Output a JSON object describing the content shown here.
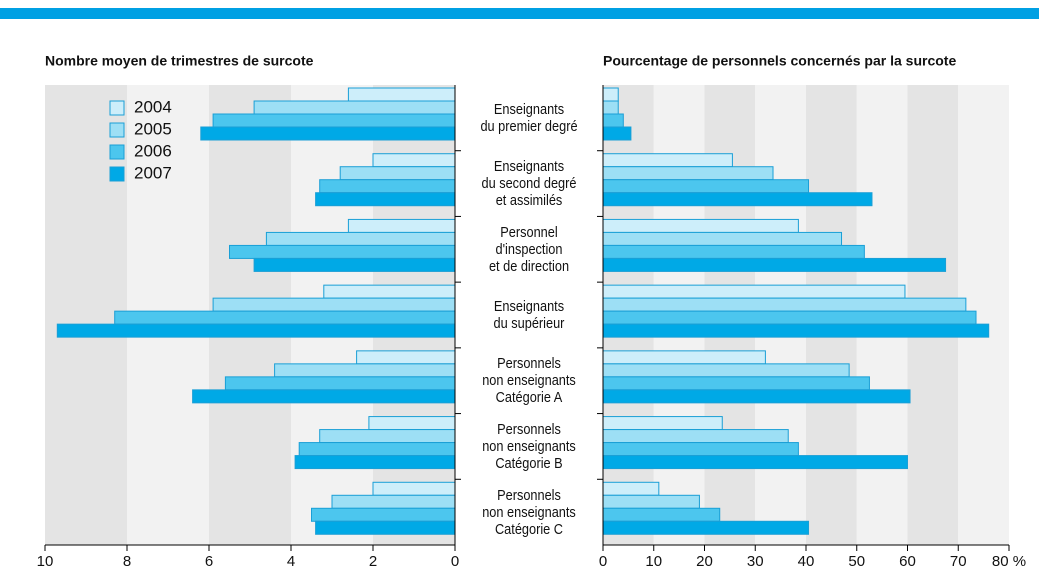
{
  "chart_data": [
    {
      "type": "bar",
      "orientation": "horizontal",
      "title": "Nombre moyen de trimestres de surcote",
      "categories": [
        "Enseignants\ndu premier degré",
        "Enseignants\ndu second degré\net assimilés",
        "Personnel\nd'inspection\net de direction",
        "Enseignants\ndu supérieur",
        "Personnels\nnon enseignants\nCatégorie A",
        "Personnels\nnon enseignants\nCatégorie B",
        "Personnels\nnon enseignants\nCatégorie C"
      ],
      "series": [
        {
          "name": "2004",
          "color": "#cdeefa",
          "values": [
            2.6,
            2.0,
            2.6,
            3.2,
            2.4,
            2.1,
            2.0
          ]
        },
        {
          "name": "2005",
          "color": "#9ddff5",
          "values": [
            4.9,
            2.8,
            4.6,
            5.9,
            4.4,
            3.3,
            3.0
          ]
        },
        {
          "name": "2006",
          "color": "#4cc6ee",
          "values": [
            5.9,
            3.3,
            5.5,
            8.3,
            5.6,
            3.8,
            3.5
          ]
        },
        {
          "name": "2007",
          "color": "#00a9e6",
          "values": [
            6.2,
            3.4,
            4.9,
            9.7,
            6.4,
            3.9,
            3.4
          ]
        }
      ],
      "xlim": [
        10,
        0
      ],
      "xticks": [
        10,
        8,
        6,
        4,
        2,
        0
      ],
      "legend": "upper-left"
    },
    {
      "type": "bar",
      "orientation": "horizontal",
      "title": "Pourcentage de personnels concernés par la surcote",
      "series": [
        {
          "color": "#cdeefa",
          "values": [
            3,
            25.5,
            38.5,
            59.5,
            32,
            23.5,
            11
          ]
        },
        {
          "color": "#9ddff5",
          "values": [
            3,
            33.5,
            47,
            71.5,
            48.5,
            36.5,
            19
          ]
        },
        {
          "color": "#4cc6ee",
          "values": [
            4,
            40.5,
            51.5,
            73.5,
            52.5,
            38.5,
            23
          ]
        },
        {
          "color": "#00a9e6",
          "values": [
            5.5,
            53,
            67.5,
            76,
            60.5,
            60,
            40.5
          ]
        }
      ],
      "xlim": [
        0,
        80
      ],
      "xticks": [
        0,
        10,
        20,
        30,
        40,
        50,
        60,
        70,
        {
          "value": 80,
          "label": "80 %"
        }
      ]
    }
  ]
}
